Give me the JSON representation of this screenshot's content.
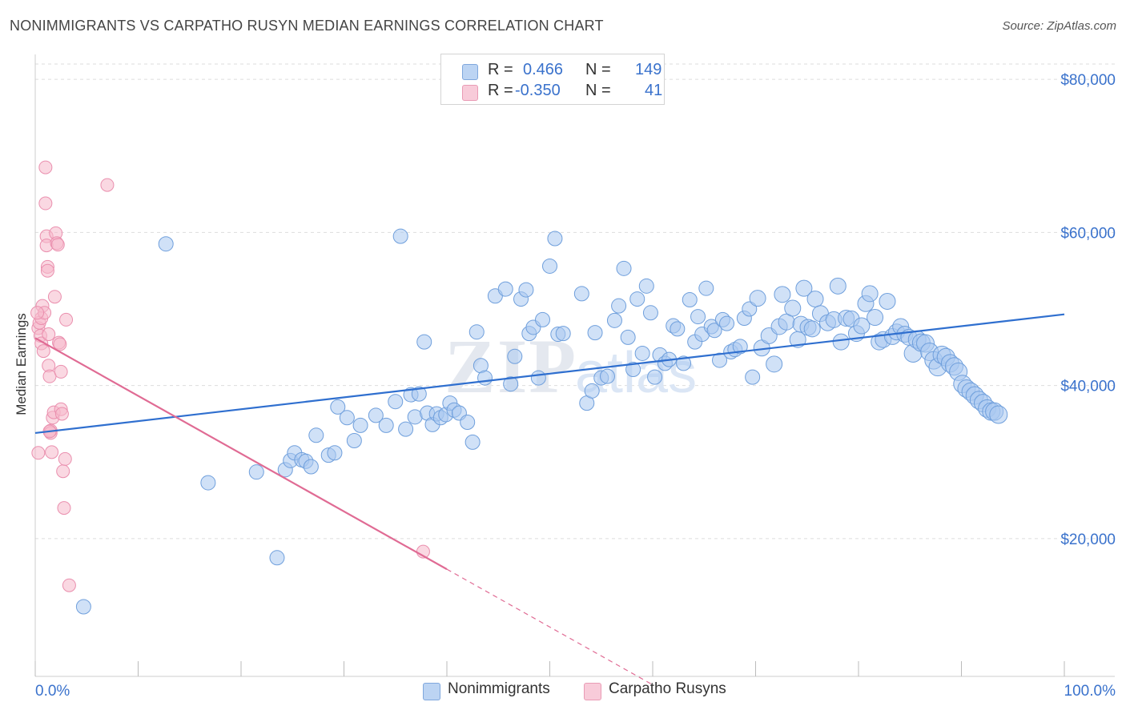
{
  "title": "NONIMMIGRANTS VS CARPATHO RUSYN MEDIAN EARNINGS CORRELATION CHART",
  "source": "Source: ZipAtlas.com",
  "watermark": "ZIPatlas",
  "legend": {
    "row1": {
      "r_label": "R =",
      "r_value": "0.466",
      "n_label": "N =",
      "n_value": "149"
    },
    "row2": {
      "r_label": "R =",
      "r_value": "-0.350",
      "n_label": "N =",
      "n_value": "41"
    }
  },
  "bottom_legend": {
    "series1": "Nonimmigrants",
    "series2": "Carpatho Rusyns"
  },
  "colors": {
    "blue_fill": "#a9c8f0",
    "blue_stroke": "#6f9fdc",
    "blue_line": "#2f6fcf",
    "pink_fill": "#f5b8cb",
    "pink_stroke": "#ea8fae",
    "pink_line": "#e06b94",
    "axis_text": "#3a72cc",
    "grid": "#dddddd"
  },
  "chart_data": {
    "type": "scatter",
    "title": "NONIMMIGRANTS VS CARPATHO RUSYN MEDIAN EARNINGS CORRELATION CHART",
    "xlabel": "",
    "ylabel": "Median Earnings",
    "xlim": [
      0,
      100
    ],
    "ylim": [
      2000,
      82000
    ],
    "x_tick_labels": [
      "0.0%",
      "100.0%"
    ],
    "y_ticks": [
      20000,
      40000,
      60000,
      80000
    ],
    "y_tick_labels": [
      "$20,000",
      "$40,000",
      "$60,000",
      "$80,000"
    ],
    "grid": true,
    "series": [
      {
        "name": "Nonimmigrants",
        "color": "#a9c8f0",
        "R": 0.466,
        "N": 149,
        "trend": {
          "x": [
            0,
            100
          ],
          "y": [
            33800,
            49300
          ]
        },
        "points": [
          [
            4.7,
            11100
          ],
          [
            12.7,
            58500
          ],
          [
            16.8,
            27300
          ],
          [
            21.5,
            28700
          ],
          [
            23.5,
            17500
          ],
          [
            24.3,
            29000
          ],
          [
            24.8,
            30200
          ],
          [
            25.2,
            31200
          ],
          [
            25.9,
            30300
          ],
          [
            26.3,
            30100
          ],
          [
            26.8,
            29400
          ],
          [
            27.3,
            33500
          ],
          [
            28.5,
            30900
          ],
          [
            29.1,
            31200
          ],
          [
            29.4,
            37200
          ],
          [
            30.3,
            35800
          ],
          [
            31.0,
            32800
          ],
          [
            31.6,
            34800
          ],
          [
            33.1,
            36100
          ],
          [
            34.1,
            34800
          ],
          [
            35.0,
            37900
          ],
          [
            35.5,
            59500
          ],
          [
            36.0,
            34300
          ],
          [
            36.5,
            38800
          ],
          [
            36.9,
            35900
          ],
          [
            37.3,
            38900
          ],
          [
            37.8,
            45700
          ],
          [
            38.1,
            36400
          ],
          [
            38.6,
            34900
          ],
          [
            39.0,
            36300
          ],
          [
            39.4,
            35800
          ],
          [
            39.9,
            36200
          ],
          [
            40.3,
            37700
          ],
          [
            40.7,
            36800
          ],
          [
            41.2,
            36400
          ],
          [
            42.0,
            35200
          ],
          [
            42.5,
            32600
          ],
          [
            42.9,
            47000
          ],
          [
            43.3,
            42600
          ],
          [
            43.7,
            41000
          ],
          [
            44.7,
            51700
          ],
          [
            45.7,
            52600
          ],
          [
            46.2,
            40200
          ],
          [
            46.6,
            43800
          ],
          [
            47.2,
            51300
          ],
          [
            47.7,
            52500
          ],
          [
            48.0,
            46800
          ],
          [
            48.4,
            47600
          ],
          [
            48.9,
            41000
          ],
          [
            49.3,
            48600
          ],
          [
            50.0,
            55600
          ],
          [
            50.5,
            59200
          ],
          [
            50.8,
            46700
          ],
          [
            51.3,
            46800
          ],
          [
            53.1,
            52000
          ],
          [
            53.6,
            37700
          ],
          [
            54.1,
            39300
          ],
          [
            54.4,
            46900
          ],
          [
            55.0,
            41000
          ],
          [
            55.6,
            41200
          ],
          [
            56.3,
            48500
          ],
          [
            56.7,
            50400
          ],
          [
            57.2,
            55300
          ],
          [
            57.6,
            46300
          ],
          [
            58.1,
            42100
          ],
          [
            58.5,
            51300
          ],
          [
            59.0,
            44200
          ],
          [
            59.4,
            53000
          ],
          [
            59.8,
            49500
          ],
          [
            60.2,
            41100
          ],
          [
            60.7,
            44000
          ],
          [
            61.2,
            42900
          ],
          [
            61.6,
            43400
          ],
          [
            62.0,
            47800
          ],
          [
            62.4,
            47400
          ],
          [
            63.0,
            42900
          ],
          [
            63.6,
            51200
          ],
          [
            64.1,
            45700
          ],
          [
            64.4,
            49000
          ],
          [
            64.8,
            46700
          ],
          [
            65.2,
            52700
          ],
          [
            65.7,
            47700
          ],
          [
            66.0,
            47200
          ],
          [
            66.5,
            43300
          ],
          [
            66.8,
            48600
          ],
          [
            67.2,
            48100
          ],
          [
            67.6,
            44400
          ],
          [
            68.0,
            44700
          ],
          [
            68.5,
            45100
          ],
          [
            68.9,
            48800
          ],
          [
            69.4,
            50000
          ],
          [
            69.7,
            41100
          ],
          [
            70.2,
            51400
          ],
          [
            70.6,
            44900
          ],
          [
            71.3,
            46500
          ],
          [
            71.8,
            42800
          ],
          [
            72.3,
            47700
          ],
          [
            72.6,
            51900
          ],
          [
            73.0,
            48300
          ],
          [
            73.6,
            50100
          ],
          [
            74.1,
            46000
          ],
          [
            74.4,
            48000
          ],
          [
            74.7,
            52700
          ],
          [
            75.1,
            47600
          ],
          [
            75.5,
            47400
          ],
          [
            75.8,
            51300
          ],
          [
            76.3,
            49400
          ],
          [
            77.0,
            48200
          ],
          [
            77.6,
            48600
          ],
          [
            78.0,
            53000
          ],
          [
            78.3,
            45700
          ],
          [
            78.8,
            48800
          ],
          [
            79.3,
            48700
          ],
          [
            79.8,
            46800
          ],
          [
            80.3,
            47800
          ],
          [
            80.7,
            50700
          ],
          [
            81.1,
            52000
          ],
          [
            81.6,
            48900
          ],
          [
            82.0,
            45700
          ],
          [
            82.4,
            46000
          ],
          [
            82.8,
            51000
          ],
          [
            83.3,
            46400
          ],
          [
            83.7,
            47000
          ],
          [
            84.1,
            47700
          ],
          [
            84.5,
            46700
          ],
          [
            84.9,
            46300
          ],
          [
            85.3,
            44200
          ],
          [
            85.7,
            46000
          ],
          [
            86.1,
            45600
          ],
          [
            86.5,
            45500
          ],
          [
            86.9,
            44400
          ],
          [
            87.3,
            43300
          ],
          [
            87.7,
            42400
          ],
          [
            88.1,
            44000
          ],
          [
            88.5,
            43700
          ],
          [
            88.9,
            42900
          ],
          [
            89.3,
            42500
          ],
          [
            89.7,
            41800
          ],
          [
            90.1,
            40200
          ],
          [
            90.5,
            39600
          ],
          [
            90.9,
            39200
          ],
          [
            91.3,
            38700
          ],
          [
            91.7,
            38100
          ],
          [
            92.1,
            37700
          ],
          [
            92.5,
            37000
          ],
          [
            92.9,
            36600
          ],
          [
            93.2,
            36600
          ],
          [
            93.6,
            36200
          ]
        ]
      },
      {
        "name": "Carpatho Rusyns",
        "color": "#f5b8cb",
        "R": -0.35,
        "N": 41,
        "trend": {
          "x": [
            0,
            40
          ],
          "y": [
            46200,
            16000
          ],
          "dashed_to": {
            "x": 60,
            "y": 900
          }
        },
        "points": [
          [
            0.3,
            47500
          ],
          [
            0.4,
            48200
          ],
          [
            0.5,
            46500
          ],
          [
            0.6,
            45500
          ],
          [
            0.6,
            48800
          ],
          [
            0.7,
            50400
          ],
          [
            0.8,
            44500
          ],
          [
            0.9,
            49500
          ],
          [
            1.0,
            68500
          ],
          [
            1.0,
            63800
          ],
          [
            1.1,
            59500
          ],
          [
            1.1,
            58300
          ],
          [
            1.2,
            55500
          ],
          [
            1.2,
            55000
          ],
          [
            1.3,
            46700
          ],
          [
            1.3,
            42600
          ],
          [
            1.4,
            41200
          ],
          [
            1.5,
            34100
          ],
          [
            1.5,
            33800
          ],
          [
            1.6,
            31300
          ],
          [
            1.7,
            35800
          ],
          [
            1.8,
            36500
          ],
          [
            1.9,
            51600
          ],
          [
            2.0,
            59900
          ],
          [
            2.1,
            58600
          ],
          [
            2.2,
            58400
          ],
          [
            2.3,
            45600
          ],
          [
            2.4,
            45400
          ],
          [
            2.5,
            41800
          ],
          [
            2.5,
            36900
          ],
          [
            2.6,
            36300
          ],
          [
            2.7,
            28800
          ],
          [
            2.8,
            24000
          ],
          [
            2.9,
            30400
          ],
          [
            3.0,
            48600
          ],
          [
            3.3,
            13900
          ],
          [
            7.0,
            66200
          ],
          [
            37.7,
            18300
          ],
          [
            0.2,
            49500
          ],
          [
            0.3,
            31200
          ],
          [
            1.4,
            34000
          ]
        ]
      }
    ]
  }
}
